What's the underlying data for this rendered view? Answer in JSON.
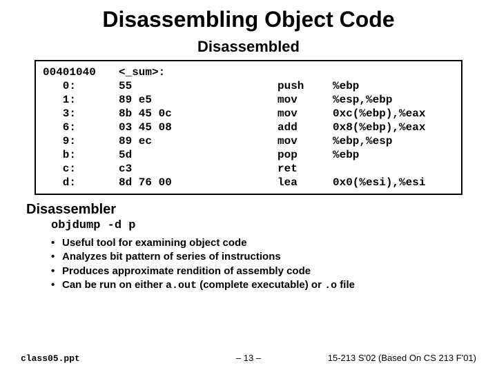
{
  "title": "Disassembling Object Code",
  "subtitle": "Disassembled",
  "code": {
    "header": {
      "addr": "00401040",
      "label": "<_sum>:"
    },
    "rows": [
      {
        "off": "   0:",
        "bytes": "55",
        "mnem": "push",
        "oper": "%ebp"
      },
      {
        "off": "   1:",
        "bytes": "89 e5",
        "mnem": "mov",
        "oper": "%esp,%ebp"
      },
      {
        "off": "   3:",
        "bytes": "8b 45 0c",
        "mnem": "mov",
        "oper": "0xc(%ebp),%eax"
      },
      {
        "off": "   6:",
        "bytes": "03 45 08",
        "mnem": "add",
        "oper": "0x8(%ebp),%eax"
      },
      {
        "off": "   9:",
        "bytes": "89 ec",
        "mnem": "mov",
        "oper": "%ebp,%esp"
      },
      {
        "off": "   b:",
        "bytes": "5d",
        "mnem": "pop",
        "oper": "%ebp"
      },
      {
        "off": "   c:",
        "bytes": "c3",
        "mnem": "ret",
        "oper": ""
      },
      {
        "off": "   d:",
        "bytes": "8d 76 00",
        "mnem": "lea",
        "oper": "0x0(%esi),%esi"
      }
    ]
  },
  "section_heading": "Disassembler",
  "command": "objdump -d p",
  "bullets": [
    {
      "text": "Useful tool for examining object code"
    },
    {
      "text": "Analyzes bit pattern of series of instructions"
    },
    {
      "text": "Produces approximate rendition of assembly code"
    },
    {
      "pre": "Can be run on either ",
      "code1": "a.out",
      "mid": " (complete executable) or ",
      "code2": ".o",
      "post": " file"
    }
  ],
  "footer": {
    "left": "class05.ppt",
    "mid": "– 13 –",
    "right": "15-213 S'02 (Based On CS 213 F'01)"
  },
  "colors": {
    "background": "#ffffff",
    "text": "#000000",
    "border": "#000000"
  },
  "fonts": {
    "title_size": 32,
    "subtitle_size": 22,
    "code_size": 16,
    "body_size": 15,
    "footer_size": 13
  }
}
